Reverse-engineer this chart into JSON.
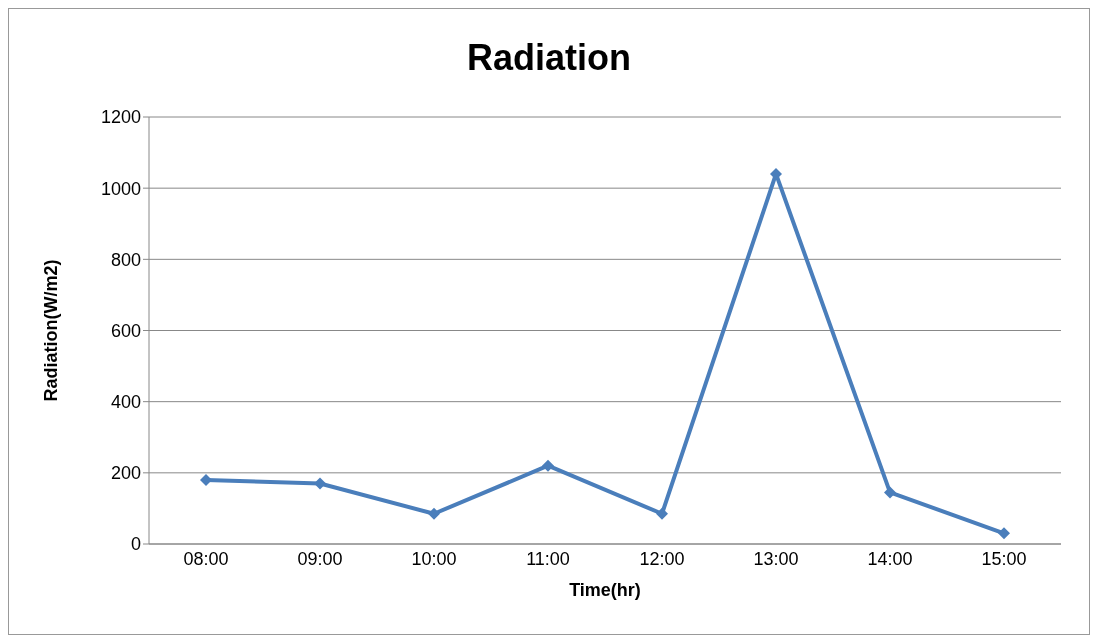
{
  "chart_data": {
    "type": "line",
    "title": "Radiation",
    "xlabel": "Time(hr)",
    "ylabel": "Radiation(W/m2)",
    "categories": [
      "08:00",
      "09:00",
      "10:00",
      "11:00",
      "12:00",
      "13:00",
      "14:00",
      "15:00"
    ],
    "series": [
      {
        "color": "#4a7ebb",
        "values": [
          180,
          170,
          85,
          220,
          85,
          1040,
          145,
          30
        ]
      }
    ],
    "ylim": [
      0,
      1200
    ],
    "yticks": [
      0,
      200,
      400,
      600,
      800,
      1000,
      1200
    ],
    "grid": "y",
    "marker": "diamond",
    "line_style": "solid"
  }
}
